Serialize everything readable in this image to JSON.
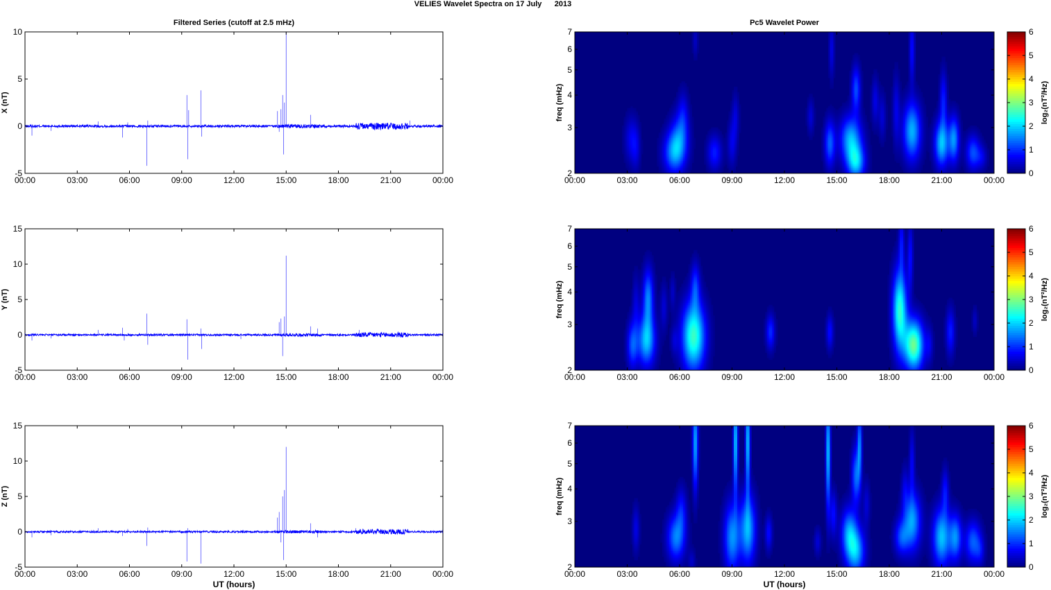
{
  "figure": {
    "title": "VELIES Wavelet Spectra on 17 July      2013"
  },
  "colors": {
    "series_line": "#0000ff",
    "axes": "#000000",
    "colormap": "jet"
  },
  "chart_data": [
    {
      "type": "line",
      "panel": "x-filtered",
      "title": "Filtered Series (cutoff at 2.5 mHz)",
      "xlabel": "",
      "ylabel": "X (nT)",
      "xlim": [
        0,
        24
      ],
      "ylim": [
        -5,
        10
      ],
      "x_ticks": [
        "00:00",
        "03:00",
        "06:00",
        "09:00",
        "12:00",
        "15:00",
        "18:00",
        "21:00",
        "00:00"
      ],
      "y_ticks": [
        -5,
        0,
        5,
        10
      ],
      "series": [
        {
          "values_note": "baseline",
          "spikes": [
            [
              0.4,
              -1
            ],
            [
              1.5,
              -0.5
            ],
            [
              4.2,
              0.5
            ],
            [
              5.6,
              -1.2
            ],
            [
              5.9,
              0.4
            ],
            [
              7.0,
              -4.2
            ],
            [
              7.05,
              0.6
            ],
            [
              9.3,
              3.3
            ],
            [
              9.35,
              -3.5
            ],
            [
              9.4,
              1.7
            ],
            [
              10.1,
              3.8
            ],
            [
              10.15,
              -1.1
            ],
            [
              14.5,
              1.6
            ],
            [
              14.6,
              -0.6
            ],
            [
              14.7,
              1.8
            ],
            [
              14.8,
              3.3
            ],
            [
              14.85,
              -3
            ],
            [
              14.9,
              2.5
            ],
            [
              15.0,
              10
            ],
            [
              16.4,
              1.2
            ],
            [
              22.1,
              0.6
            ]
          ]
        }
      ]
    },
    {
      "type": "heatmap",
      "panel": "x-wavelet",
      "title": "Pc5 Wavelet Power",
      "xlabel": "",
      "ylabel": "freq (mHz)",
      "xlim": [
        0,
        24
      ],
      "ylim": [
        2,
        7
      ],
      "yscale": "log",
      "x_ticks": [
        "00:00",
        "03:00",
        "06:00",
        "09:00",
        "12:00",
        "15:00",
        "18:00",
        "21:00",
        "00:00"
      ],
      "y_ticks": [
        2,
        3,
        4,
        5,
        6,
        7
      ],
      "colorbar_label": "log₂(nT²/Hz)",
      "clim": [
        0,
        6
      ],
      "colorbar_ticks": [
        0,
        1,
        2,
        3,
        4,
        5,
        6
      ],
      "blobs": [
        [
          3.2,
          2.7,
          0.07,
          0.2,
          0.6
        ],
        [
          3.5,
          2.5,
          0.05,
          0.2,
          0.5
        ],
        [
          5.7,
          2.4,
          0.12,
          0.18,
          1.6
        ],
        [
          6.0,
          2.8,
          0.1,
          0.2,
          1.0
        ],
        [
          6.2,
          3.4,
          0.06,
          0.2,
          0.6
        ],
        [
          6.9,
          6.5,
          0.03,
          0.15,
          0.4
        ],
        [
          8.0,
          2.4,
          0.08,
          0.15,
          0.9
        ],
        [
          9.0,
          2.6,
          0.05,
          0.2,
          0.6
        ],
        [
          9.2,
          3.3,
          0.04,
          0.2,
          0.5
        ],
        [
          13.5,
          3.3,
          0.04,
          0.15,
          0.5
        ],
        [
          14.6,
          2.6,
          0.06,
          0.2,
          1.3
        ],
        [
          14.7,
          6.0,
          0.03,
          0.25,
          0.6
        ],
        [
          15.8,
          2.7,
          0.12,
          0.2,
          1.8
        ],
        [
          16.1,
          2.2,
          0.1,
          0.15,
          1.8
        ],
        [
          16.1,
          4.2,
          0.05,
          0.2,
          1.2
        ],
        [
          17.2,
          3.8,
          0.04,
          0.2,
          0.6
        ],
        [
          17.6,
          3.3,
          0.04,
          0.2,
          0.5
        ],
        [
          18.4,
          3.5,
          0.04,
          0.3,
          0.6
        ],
        [
          19.3,
          2.9,
          0.1,
          0.25,
          1.8
        ],
        [
          19.3,
          6.0,
          0.03,
          0.3,
          0.8
        ],
        [
          21.0,
          2.6,
          0.08,
          0.2,
          1.9
        ],
        [
          21.1,
          3.8,
          0.04,
          0.25,
          0.9
        ],
        [
          21.7,
          2.7,
          0.06,
          0.2,
          1.6
        ],
        [
          22.8,
          2.4,
          0.08,
          0.15,
          1.2
        ],
        [
          23.3,
          2.3,
          0.06,
          0.1,
          0.5
        ]
      ]
    },
    {
      "type": "line",
      "panel": "y-filtered",
      "title": "",
      "xlabel": "",
      "ylabel": "Y (nT)",
      "xlim": [
        0,
        24
      ],
      "ylim": [
        -5,
        15
      ],
      "x_ticks": [
        "00:00",
        "03:00",
        "06:00",
        "09:00",
        "12:00",
        "15:00",
        "18:00",
        "21:00",
        "00:00"
      ],
      "y_ticks": [
        -5,
        0,
        5,
        10,
        15
      ],
      "series": [
        {
          "spikes": [
            [
              0.4,
              -0.8
            ],
            [
              1.5,
              -0.5
            ],
            [
              4.2,
              0.7
            ],
            [
              5.6,
              1.0
            ],
            [
              5.7,
              -0.8
            ],
            [
              7.0,
              3.0
            ],
            [
              7.05,
              -1.4
            ],
            [
              9.3,
              2.2
            ],
            [
              9.35,
              -3.5
            ],
            [
              10.1,
              0.9
            ],
            [
              10.15,
              -2
            ],
            [
              12.4,
              -0.6
            ],
            [
              14.6,
              1.8
            ],
            [
              14.7,
              2.3
            ],
            [
              14.8,
              -3
            ],
            [
              14.9,
              2.6
            ],
            [
              15.0,
              11.2
            ],
            [
              16.4,
              1.2
            ],
            [
              16.8,
              0.9
            ],
            [
              19.2,
              0.7
            ]
          ]
        }
      ]
    },
    {
      "type": "heatmap",
      "panel": "y-wavelet",
      "title": "",
      "xlabel": "",
      "ylabel": "freq (mHz)",
      "xlim": [
        0,
        24
      ],
      "ylim": [
        2,
        7
      ],
      "yscale": "log",
      "x_ticks": [
        "00:00",
        "03:00",
        "06:00",
        "09:00",
        "12:00",
        "15:00",
        "18:00",
        "21:00",
        "00:00"
      ],
      "y_ticks": [
        2,
        3,
        4,
        5,
        6,
        7
      ],
      "colorbar_label": "log₂(nT²/Hz)",
      "clim": [
        0,
        6
      ],
      "colorbar_ticks": [
        0,
        1,
        2,
        3,
        4,
        5,
        6
      ],
      "blobs": [
        [
          3.3,
          2.5,
          0.06,
          0.2,
          1.2
        ],
        [
          3.5,
          3.6,
          0.04,
          0.25,
          0.5
        ],
        [
          4.1,
          2.6,
          0.1,
          0.22,
          1.9
        ],
        [
          4.2,
          3.8,
          0.06,
          0.25,
          1.5
        ],
        [
          5.1,
          3.5,
          0.04,
          0.2,
          0.5
        ],
        [
          5.6,
          4.0,
          0.03,
          0.15,
          0.4
        ],
        [
          5.7,
          2.6,
          0.04,
          0.12,
          0.4
        ],
        [
          6.8,
          2.7,
          0.13,
          0.3,
          2.6
        ],
        [
          6.9,
          4.2,
          0.05,
          0.2,
          1.0
        ],
        [
          11.2,
          2.8,
          0.05,
          0.15,
          1.0
        ],
        [
          14.6,
          2.8,
          0.04,
          0.15,
          0.8
        ],
        [
          18.6,
          3.4,
          0.08,
          0.35,
          2.5
        ],
        [
          18.7,
          6.2,
          0.03,
          0.25,
          0.8
        ],
        [
          19.4,
          2.5,
          0.11,
          0.22,
          2.9
        ],
        [
          19.2,
          5.5,
          0.03,
          0.3,
          0.8
        ],
        [
          20.3,
          2.5,
          0.04,
          0.15,
          0.5
        ],
        [
          21.5,
          2.8,
          0.05,
          0.2,
          0.9
        ],
        [
          22.9,
          3.1,
          0.03,
          0.12,
          0.4
        ]
      ]
    },
    {
      "type": "line",
      "panel": "z-filtered",
      "title": "",
      "xlabel": "UT (hours)",
      "ylabel": "Z (nT)",
      "xlim": [
        0,
        24
      ],
      "ylim": [
        -5,
        15
      ],
      "x_ticks": [
        "00:00",
        "03:00",
        "06:00",
        "09:00",
        "12:00",
        "15:00",
        "18:00",
        "21:00",
        "00:00"
      ],
      "y_ticks": [
        -5,
        0,
        5,
        10,
        15
      ],
      "series": [
        {
          "spikes": [
            [
              0.4,
              -0.8
            ],
            [
              1.5,
              -0.5
            ],
            [
              4.2,
              0.5
            ],
            [
              5.6,
              -0.6
            ],
            [
              5.9,
              0.4
            ],
            [
              7.0,
              -2.0
            ],
            [
              7.05,
              0.6
            ],
            [
              9.3,
              -4.2
            ],
            [
              9.35,
              0.5
            ],
            [
              10.1,
              -4.5
            ],
            [
              14.5,
              2.0
            ],
            [
              14.6,
              2.8
            ],
            [
              14.7,
              -1.5
            ],
            [
              14.8,
              5.0
            ],
            [
              14.85,
              -4
            ],
            [
              14.9,
              5.9
            ],
            [
              15.0,
              12.0
            ],
            [
              16.4,
              1.2
            ],
            [
              16.8,
              -0.8
            ],
            [
              19.0,
              0.5
            ]
          ]
        }
      ]
    },
    {
      "type": "heatmap",
      "panel": "z-wavelet",
      "title": "",
      "xlabel": "UT (hours)",
      "ylabel": "freq (mHz)",
      "xlim": [
        0,
        24
      ],
      "ylim": [
        2,
        7
      ],
      "yscale": "log",
      "x_ticks": [
        "00:00",
        "03:00",
        "06:00",
        "09:00",
        "12:00",
        "15:00",
        "18:00",
        "21:00",
        "00:00"
      ],
      "y_ticks": [
        2,
        3,
        4,
        5,
        6,
        7
      ],
      "colorbar_label": "log₂(nT²/Hz)",
      "clim": [
        0,
        6
      ],
      "colorbar_ticks": [
        0,
        1,
        2,
        3,
        4,
        5,
        6
      ],
      "blobs": [
        [
          3.5,
          2.8,
          0.04,
          0.2,
          0.6
        ],
        [
          5.8,
          2.6,
          0.1,
          0.2,
          1.5
        ],
        [
          6.1,
          3.3,
          0.06,
          0.2,
          0.8
        ],
        [
          6.7,
          2.1,
          0.04,
          0.1,
          0.4
        ],
        [
          6.9,
          6.0,
          0.03,
          0.4,
          1.8
        ],
        [
          9.0,
          2.6,
          0.09,
          0.3,
          1.6
        ],
        [
          9.2,
          6.0,
          0.025,
          0.45,
          2.0
        ],
        [
          9.9,
          2.8,
          0.09,
          0.3,
          1.8
        ],
        [
          9.9,
          6.0,
          0.025,
          0.45,
          2.0
        ],
        [
          11.1,
          2.7,
          0.04,
          0.15,
          0.8
        ],
        [
          13.9,
          2.5,
          0.04,
          0.12,
          0.5
        ],
        [
          14.5,
          5.5,
          0.025,
          0.5,
          2.0
        ],
        [
          14.8,
          3.2,
          0.04,
          0.2,
          0.8
        ],
        [
          15.7,
          2.7,
          0.09,
          0.22,
          1.6
        ],
        [
          16.1,
          2.3,
          0.1,
          0.2,
          1.7
        ],
        [
          16.1,
          4.5,
          0.05,
          0.25,
          1.4
        ],
        [
          16.3,
          6.0,
          0.025,
          0.3,
          1.5
        ],
        [
          16.7,
          3.5,
          0.04,
          0.2,
          0.5
        ],
        [
          18.7,
          2.6,
          0.08,
          0.15,
          1.1
        ],
        [
          18.9,
          4.0,
          0.04,
          0.2,
          0.5
        ],
        [
          19.3,
          3.0,
          0.1,
          0.25,
          1.7
        ],
        [
          19.3,
          5.0,
          0.03,
          0.3,
          0.7
        ],
        [
          21.0,
          2.6,
          0.1,
          0.25,
          1.9
        ],
        [
          21.2,
          3.9,
          0.04,
          0.2,
          0.8
        ],
        [
          21.8,
          2.6,
          0.07,
          0.2,
          1.5
        ],
        [
          22.8,
          2.5,
          0.09,
          0.18,
          1.3
        ],
        [
          23.2,
          2.3,
          0.05,
          0.12,
          0.5
        ]
      ]
    }
  ]
}
